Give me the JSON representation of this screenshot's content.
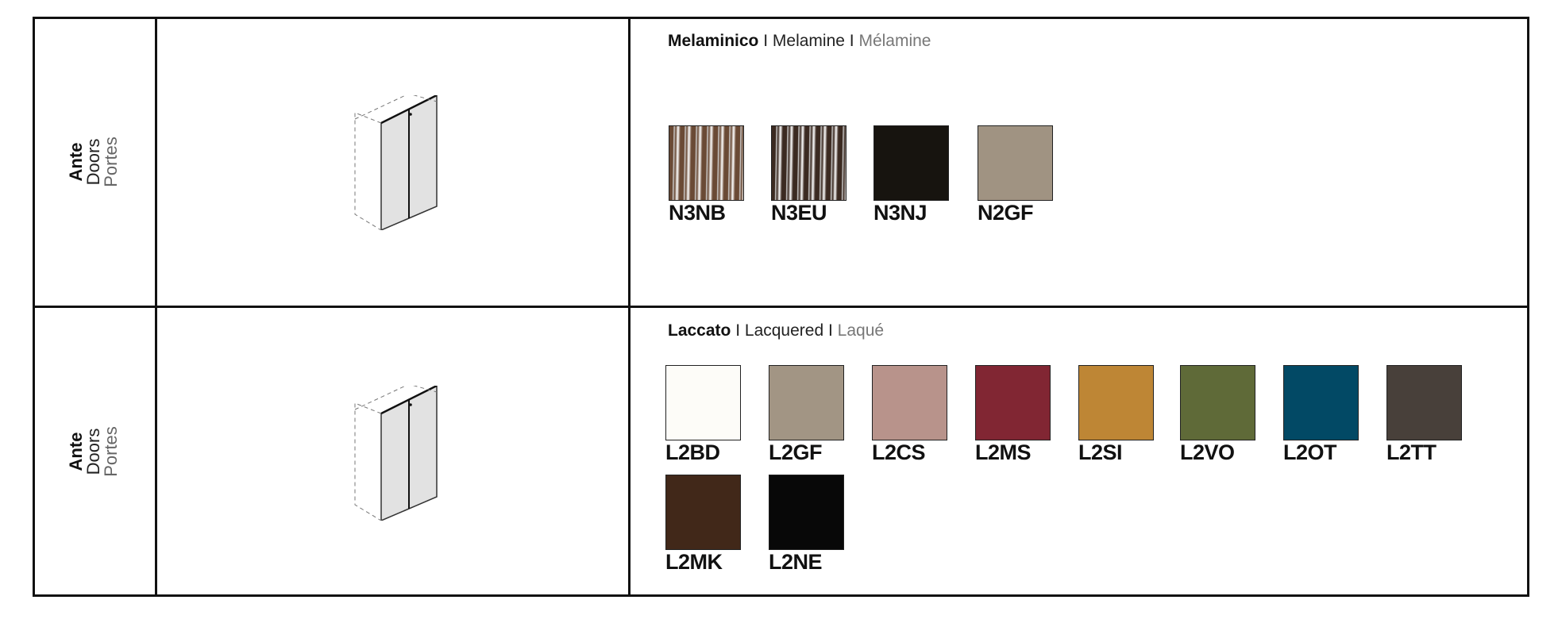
{
  "rows": [
    {
      "label": {
        "it": "Ante",
        "en": "Doors",
        "fr": "Portes"
      },
      "heading": {
        "it": "Melaminico",
        "sep": " I ",
        "en": "Melamine",
        "fr": "Mélamine"
      },
      "swatches": [
        {
          "code": "N3NB",
          "color": "#6a4a35",
          "texture": "wood"
        },
        {
          "code": "N3EU",
          "color": "#3b2a21",
          "texture": "wood"
        },
        {
          "code": "N3NJ",
          "color": "#17140f",
          "texture": "solid"
        },
        {
          "code": "N2GF",
          "color": "#a09382",
          "texture": "solid"
        }
      ]
    },
    {
      "label": {
        "it": "Ante",
        "en": "Doors",
        "fr": "Portes"
      },
      "heading": {
        "it": "Laccato",
        "sep": " I ",
        "en": "Lacquered",
        "fr": "Laqué"
      },
      "swatches": [
        {
          "code": "L2BD",
          "color": "#fdfcf8"
        },
        {
          "code": "L2GF",
          "color": "#a29584"
        },
        {
          "code": "L2CS",
          "color": "#b8938b"
        },
        {
          "code": "L2MS",
          "color": "#812633"
        },
        {
          "code": "L2SI",
          "color": "#be8635"
        },
        {
          "code": "L2VO",
          "color": "#5f6a38"
        },
        {
          "code": "L2OT",
          "color": "#024965"
        },
        {
          "code": "L2TT",
          "color": "#48403a"
        },
        {
          "code": "L2MK",
          "color": "#412819"
        },
        {
          "code": "L2NE",
          "color": "#080808"
        }
      ]
    }
  ]
}
